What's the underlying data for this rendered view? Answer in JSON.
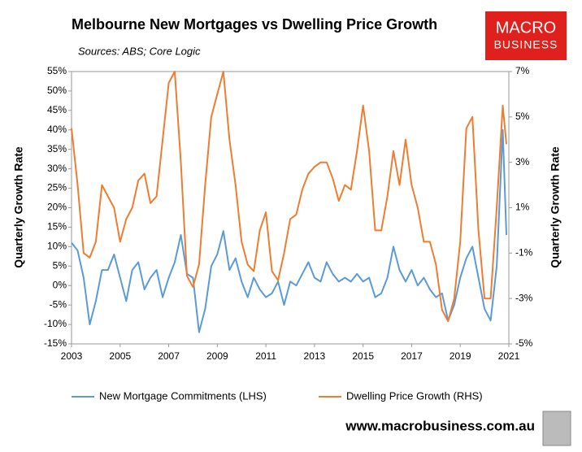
{
  "chart_data": {
    "type": "line",
    "title": "Melbourne New Mortgages vs Dwelling Price Growth",
    "subtitle": "Sources: ABS; Core Logic",
    "logo": [
      "MACRO",
      "BUSINESS"
    ],
    "footer": "www.macrobusiness.com.au",
    "ylabel": "Quarterly  Growth Rate",
    "y2label": "Quarterly Growth Rate",
    "x": [
      2003,
      2003.25,
      2003.5,
      2003.75,
      2004,
      2004.25,
      2004.5,
      2004.75,
      2005,
      2005.25,
      2005.5,
      2005.75,
      2006,
      2006.25,
      2006.5,
      2006.75,
      2007,
      2007.25,
      2007.5,
      2007.75,
      2008,
      2008.25,
      2008.5,
      2008.75,
      2009,
      2009.25,
      2009.5,
      2009.75,
      2010,
      2010.25,
      2010.5,
      2010.75,
      2011,
      2011.25,
      2011.5,
      2011.75,
      2012,
      2012.25,
      2012.5,
      2012.75,
      2013,
      2013.25,
      2013.5,
      2013.75,
      2014,
      2014.25,
      2014.5,
      2014.75,
      2015,
      2015.25,
      2015.5,
      2015.75,
      2016,
      2016.25,
      2016.5,
      2016.75,
      2017,
      2017.25,
      2017.5,
      2017.75,
      2018,
      2018.25,
      2018.5,
      2018.75,
      2019,
      2019.25,
      2019.5,
      2019.75,
      2020,
      2020.25,
      2020.5,
      2020.75,
      2020.9
    ],
    "series": [
      {
        "name": "New Mortgage Commitments (LHS)",
        "color": "#5b9bd5",
        "axis": "y",
        "values": [
          11,
          9,
          2,
          -10,
          -4,
          4,
          4,
          8,
          2,
          -4,
          4,
          6,
          -1,
          2,
          4,
          -3,
          2,
          6,
          13,
          3,
          2,
          -12,
          -6,
          5,
          8,
          14,
          4,
          7,
          1,
          -3,
          2,
          -1,
          -3,
          -2,
          1,
          -5,
          1,
          0,
          3,
          6,
          2,
          1,
          6,
          3,
          1,
          2,
          1,
          3,
          1,
          2,
          -3,
          -2,
          2,
          10,
          4,
          1,
          4,
          0,
          2,
          -1,
          -3,
          -2,
          -9,
          -5,
          2,
          7,
          10,
          2,
          -6,
          -9,
          5,
          40,
          13
        ]
      },
      {
        "name": "Dwelling Price Growth (RHS)",
        "color": "#ed7d31",
        "axis": "y2",
        "values": [
          4.5,
          2,
          -1,
          -1.2,
          -0.5,
          2,
          1.5,
          1,
          -0.5,
          0.5,
          1,
          2.2,
          2.5,
          1.2,
          1.5,
          4,
          6.5,
          7,
          3,
          -2,
          -2.5,
          -1.5,
          2,
          5,
          6,
          7,
          4,
          2,
          -0.5,
          -1.5,
          -1.8,
          0,
          0.8,
          -1.8,
          -2.2,
          -1,
          0.5,
          0.7,
          1.8,
          2.5,
          2.8,
          3,
          3,
          2.3,
          1.3,
          2,
          1.8,
          3.5,
          5.5,
          3.5,
          0,
          0,
          1.5,
          3.5,
          2,
          4,
          2,
          1,
          -0.5,
          -0.5,
          -1.5,
          -3.5,
          -4,
          -3,
          -0.5,
          4.5,
          5,
          0,
          -3,
          -3,
          1,
          5.5,
          3.8
        ]
      }
    ],
    "xlim": [
      2003,
      2021
    ],
    "xticks": [
      2003,
      2005,
      2007,
      2009,
      2011,
      2013,
      2015,
      2017,
      2019,
      2021
    ],
    "ylim": [
      -15,
      55
    ],
    "yticks": [
      {
        "value": -15,
        "label": "-15%"
      },
      {
        "value": -10,
        "label": "-10%"
      },
      {
        "value": -5,
        "label": "-5%"
      },
      {
        "value": 0,
        "label": "0%"
      },
      {
        "value": 5,
        "label": "5%"
      },
      {
        "value": 10,
        "label": "10%"
      },
      {
        "value": 15,
        "label": "15%"
      },
      {
        "value": 20,
        "label": "20%"
      },
      {
        "value": 25,
        "label": "25%"
      },
      {
        "value": 30,
        "label": "30%"
      },
      {
        "value": 35,
        "label": "35%"
      },
      {
        "value": 40,
        "label": "40%"
      },
      {
        "value": 45,
        "label": "45%"
      },
      {
        "value": 50,
        "label": "50%"
      },
      {
        "value": 55,
        "label": "55%"
      }
    ],
    "y2lim": [
      -5,
      7
    ],
    "y2ticks": [
      {
        "value": -5,
        "label": "-5%"
      },
      {
        "value": -3,
        "label": "-3%"
      },
      {
        "value": -1,
        "label": "-1%"
      },
      {
        "value": 1,
        "label": "1%"
      },
      {
        "value": 3,
        "label": "3%"
      },
      {
        "value": 5,
        "label": "5%"
      },
      {
        "value": 7,
        "label": "7%"
      }
    ]
  }
}
